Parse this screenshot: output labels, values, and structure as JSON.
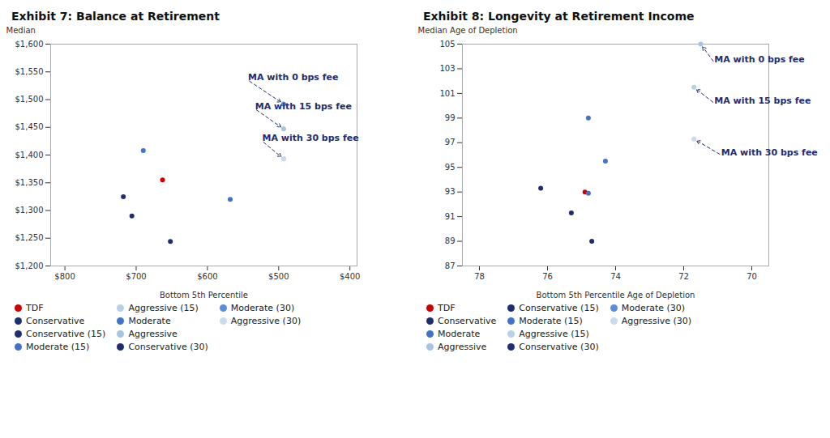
{
  "chart_data": [
    {
      "type": "scatter",
      "title": "Exhibit 7: Balance at Retirement",
      "xlabel": "Bottom 5th Percentile",
      "ylabel": "Median",
      "xlim": [
        820,
        390
      ],
      "ylim": [
        1200,
        1600
      ],
      "xticks": [
        {
          "value": 800,
          "label": "$800"
        },
        {
          "value": 700,
          "label": "$700"
        },
        {
          "value": 600,
          "label": "$600"
        },
        {
          "value": 500,
          "label": "$500"
        },
        {
          "value": 400,
          "label": "$400"
        }
      ],
      "yticks": [
        {
          "value": 1200,
          "label": "$1,200"
        },
        {
          "value": 1250,
          "label": "$1,250"
        },
        {
          "value": 1300,
          "label": "$1,300"
        },
        {
          "value": 1350,
          "label": "$1,350"
        },
        {
          "value": 1400,
          "label": "$1,400"
        },
        {
          "value": 1450,
          "label": "$1,450"
        },
        {
          "value": 1500,
          "label": "$1,500"
        },
        {
          "value": 1550,
          "label": "$1,550"
        },
        {
          "value": 1600,
          "label": "$1,600"
        }
      ],
      "grid": false,
      "points": [
        {
          "x": 663,
          "y": 1355,
          "color": "#cc0000"
        },
        {
          "x": 718,
          "y": 1325,
          "color": "#1f2d6e"
        },
        {
          "x": 706,
          "y": 1290,
          "color": "#1f2d6e"
        },
        {
          "x": 652,
          "y": 1244,
          "color": "#1f2d6e"
        },
        {
          "x": 690,
          "y": 1408,
          "color": "#4472c4"
        },
        {
          "x": 568,
          "y": 1320,
          "color": "#4472c4"
        },
        {
          "x": 493,
          "y": 1492,
          "color": "#5b8dd9"
        },
        {
          "x": 493,
          "y": 1447,
          "color": "#a8c4e0"
        },
        {
          "x": 493,
          "y": 1393,
          "color": "#b8d0e8"
        },
        {
          "x": 493,
          "y": 1393,
          "color": "#ccdaee"
        }
      ],
      "annotations": [
        {
          "text": "MA with 0 bps fee",
          "x": 493,
          "y": 1492,
          "text_x": 543,
          "text_y": 1535,
          "color": "#1f2d6e"
        },
        {
          "text": "MA with 15 bps fee",
          "x": 493,
          "y": 1447,
          "text_x": 533,
          "text_y": 1483,
          "color": "#1f2d6e"
        },
        {
          "text": "MA with 30 bps fee",
          "x": 493,
          "y": 1393,
          "text_x": 523,
          "text_y": 1425,
          "color": "#1f2d6e"
        }
      ],
      "legend_entries": [
        {
          "label": "TDF",
          "color": "#cc0000"
        },
        {
          "label": "Conservative",
          "color": "#1f2d6e"
        },
        {
          "label": "Conservative (15)",
          "color": "#1f2d6e"
        },
        {
          "label": "Moderate (15)",
          "color": "#4472c4"
        },
        {
          "label": "Aggressive (15)",
          "color": "#b8d0e8"
        },
        {
          "label": "Moderate",
          "color": "#4472c4"
        },
        {
          "label": "Aggressive",
          "color": "#a8c4e0"
        },
        {
          "label": "Conservative (30)",
          "color": "#1f2d6e"
        },
        {
          "label": "Moderate (30)",
          "color": "#5b8dd9"
        },
        {
          "label": "Aggressive (30)",
          "color": "#ccdaee"
        }
      ]
    },
    {
      "type": "scatter",
      "title": "Exhibit 8: Longevity at Retirement Income",
      "xlabel": "Bottom 5th Percentile Age of Depletion",
      "ylabel": "Median Age of Depletion",
      "xlim": [
        78.5,
        69.5
      ],
      "ylim": [
        87,
        105
      ],
      "xticks": [
        78,
        76,
        74,
        72,
        70
      ],
      "yticks": [
        87,
        89,
        91,
        93,
        95,
        97,
        99,
        101,
        103,
        105
      ],
      "grid": false,
      "points": [
        {
          "x": 74.9,
          "y": 93.0,
          "color": "#cc0000"
        },
        {
          "x": 76.2,
          "y": 93.3,
          "color": "#1f2d6e"
        },
        {
          "x": 75.3,
          "y": 91.3,
          "color": "#1f2d6e"
        },
        {
          "x": 74.7,
          "y": 89.0,
          "color": "#1f2d6e"
        },
        {
          "x": 74.8,
          "y": 92.9,
          "color": "#4472c4"
        },
        {
          "x": 74.3,
          "y": 95.5,
          "color": "#4472c4"
        },
        {
          "x": 74.8,
          "y": 99.0,
          "color": "#4472c4"
        },
        {
          "x": 71.5,
          "y": 105.0,
          "color": "#a8c4e0"
        },
        {
          "x": 71.7,
          "y": 101.5,
          "color": "#b8d0e8"
        },
        {
          "x": 71.7,
          "y": 97.3,
          "color": "#ccdaee"
        }
      ],
      "annotations": [
        {
          "text": "MA with 0 bps fee",
          "x": 71.5,
          "y": 105.0,
          "text_x": 71.1,
          "text_y": 103.5,
          "color": "#1f2d6e"
        },
        {
          "text": "MA with 15 bps fee",
          "x": 71.7,
          "y": 101.5,
          "text_x": 71.1,
          "text_y": 100.2,
          "color": "#1f2d6e"
        },
        {
          "text": "MA with 30 bps fee",
          "x": 71.7,
          "y": 97.3,
          "text_x": 70.9,
          "text_y": 96.0,
          "color": "#1f2d6e"
        }
      ],
      "legend_entries": [
        {
          "label": "TDF",
          "color": "#cc0000"
        },
        {
          "label": "Conservative",
          "color": "#1f2d6e"
        },
        {
          "label": "Moderate",
          "color": "#4472c4"
        },
        {
          "label": "Aggressive",
          "color": "#a8c4e0"
        },
        {
          "label": "Conservative (15)",
          "color": "#1f2d6e"
        },
        {
          "label": "Moderate (15)",
          "color": "#4472c4"
        },
        {
          "label": "Aggressive (15)",
          "color": "#b8d0e8"
        },
        {
          "label": "Conservative (30)",
          "color": "#1f2d6e"
        },
        {
          "label": "Moderate (30)",
          "color": "#5b8dd9"
        },
        {
          "label": "Aggressive (30)",
          "color": "#ccdaee"
        }
      ]
    }
  ]
}
